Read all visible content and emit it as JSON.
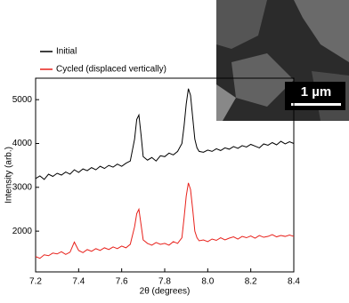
{
  "chart_data": {
    "type": "line",
    "x_label": "2θ (degrees)",
    "y_label": "Intensity (arb.)",
    "annotation": "1 µm",
    "legend": "top-left",
    "x": [
      7.2,
      7.22,
      7.24,
      7.26,
      7.28,
      7.3,
      7.32,
      7.34,
      7.36,
      7.38,
      7.4,
      7.42,
      7.44,
      7.46,
      7.48,
      7.5,
      7.52,
      7.54,
      7.56,
      7.58,
      7.6,
      7.62,
      7.64,
      7.66,
      7.67,
      7.68,
      7.69,
      7.7,
      7.72,
      7.74,
      7.76,
      7.78,
      7.8,
      7.82,
      7.84,
      7.86,
      7.88,
      7.89,
      7.9,
      7.91,
      7.92,
      7.93,
      7.94,
      7.95,
      7.96,
      7.98,
      8.0,
      8.02,
      8.04,
      8.06,
      8.08,
      8.1,
      8.12,
      8.14,
      8.16,
      8.18,
      8.2,
      8.22,
      8.24,
      8.26,
      8.28,
      8.3,
      8.32,
      8.34,
      8.36,
      8.38,
      8.4
    ],
    "series": [
      {
        "name": "Initial",
        "color": "#000000",
        "values": [
          3200,
          3260,
          3180,
          3300,
          3250,
          3320,
          3280,
          3350,
          3300,
          3400,
          3340,
          3420,
          3380,
          3450,
          3400,
          3480,
          3430,
          3500,
          3460,
          3530,
          3480,
          3550,
          3600,
          4100,
          4550,
          4650,
          4200,
          3700,
          3620,
          3680,
          3600,
          3720,
          3700,
          3780,
          3740,
          3820,
          4000,
          4400,
          4900,
          5250,
          5100,
          4600,
          4100,
          3900,
          3820,
          3800,
          3850,
          3820,
          3880,
          3840,
          3900,
          3870,
          3930,
          3890,
          3950,
          3920,
          3980,
          3940,
          3900,
          3990,
          3960,
          4020,
          3970,
          4050,
          3990,
          4040,
          4000
        ]
      },
      {
        "name": "Cycled (displaced vertically)",
        "color": "#e8211b",
        "values": [
          1420,
          1380,
          1460,
          1440,
          1500,
          1480,
          1530,
          1470,
          1520,
          1750,
          1560,
          1510,
          1580,
          1540,
          1600,
          1560,
          1620,
          1580,
          1640,
          1600,
          1660,
          1620,
          1700,
          2100,
          2400,
          2500,
          2150,
          1800,
          1720,
          1680,
          1740,
          1700,
          1720,
          1680,
          1760,
          1720,
          1850,
          2300,
          2800,
          3100,
          2950,
          2500,
          2000,
          1850,
          1780,
          1800,
          1760,
          1820,
          1790,
          1850,
          1800,
          1840,
          1870,
          1820,
          1880,
          1850,
          1890,
          1840,
          1900,
          1860,
          1880,
          1920,
          1870,
          1900,
          1880,
          1910,
          1880
        ]
      }
    ],
    "xlim": [
      7.2,
      8.4
    ],
    "xticks": [
      7.2,
      7.4,
      7.6,
      7.8,
      {
        "value": 8,
        "label": "8.0"
      },
      8.2,
      8.4
    ],
    "ylim": [
      1070,
      5490
    ],
    "yticks": [
      2000,
      3000,
      4000,
      5000
    ]
  }
}
